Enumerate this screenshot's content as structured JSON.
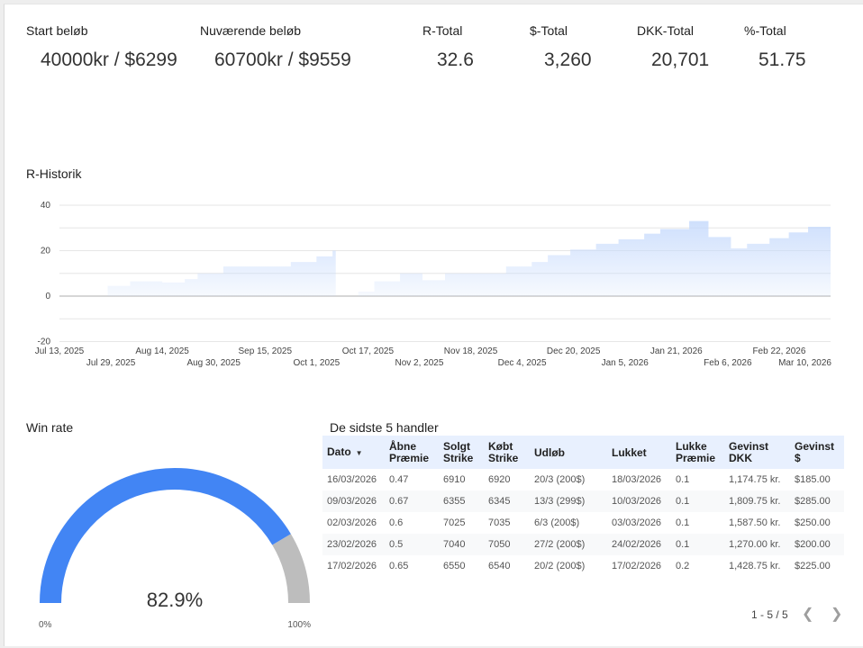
{
  "kpis": [
    {
      "label": "Start beløb",
      "value": "40000kr / $6299"
    },
    {
      "label": "Nuværende beløb",
      "value": "60700kr / $9559"
    },
    {
      "label": "R-Total",
      "value": "32.6"
    },
    {
      "label": "$-Total",
      "value": "3,260"
    },
    {
      "label": "DKK-Total",
      "value": "20,701"
    },
    {
      "label": "%-Total",
      "value": "51.75"
    }
  ],
  "colors": {
    "accent": "#4285f4",
    "gauge_rest": "#bdbdbd",
    "area_fill": "#c6dafc",
    "header_bg": "#e8f0fe"
  },
  "chart_data": {
    "type": "area",
    "title": "R-Historik",
    "xlabel": "",
    "ylabel": "",
    "ylim": [
      -20,
      40
    ],
    "yticks": [
      "40",
      "20",
      "0",
      "-20"
    ],
    "ytick_values": [
      40,
      20,
      0,
      -20
    ],
    "grid": true,
    "x_start": "2025-07-13",
    "x_end": "2026-03-10",
    "xticks_top": [
      "Jul 13, 2025",
      "Aug 14, 2025",
      "Sep 15, 2025",
      "Oct 17, 2025",
      "Nov 18, 2025",
      "Dec 20, 2025",
      "Jan 21, 2026",
      "Feb 22, 2026"
    ],
    "xticks_bottom": [
      "Jul 29, 2025",
      "Aug 30, 2025",
      "Oct 1, 2025",
      "Nov 2, 2025",
      "Dec 4, 2025",
      "Jan 5, 2026",
      "Feb 6, 2026",
      "Mar 10, 2026"
    ],
    "step_series": {
      "name": "R",
      "x": [
        "2025-07-28",
        "2025-08-04",
        "2025-08-14",
        "2025-08-21",
        "2025-08-25",
        "2025-09-02",
        "2025-09-23",
        "2025-10-01",
        "2025-10-06",
        "2025-10-07",
        "2025-10-14",
        "2025-10-19",
        "2025-10-27",
        "2025-11-03",
        "2025-11-10",
        "2025-11-29",
        "2025-12-07",
        "2025-12-12",
        "2025-12-19",
        "2025-12-27",
        "2026-01-03",
        "2026-01-11",
        "2026-01-16",
        "2026-01-25",
        "2026-01-31",
        "2026-02-07",
        "2026-02-12",
        "2026-02-19",
        "2026-02-25",
        "2026-03-03",
        "2026-03-10"
      ],
      "values": [
        4.5,
        6.5,
        6,
        7.5,
        10,
        13,
        15,
        17.5,
        20,
        0,
        2,
        6.5,
        10,
        7,
        10,
        13,
        15,
        18,
        20.5,
        23,
        25,
        27.5,
        29.5,
        33,
        26,
        21,
        23,
        25.5,
        28,
        30.5,
        31.5
      ]
    }
  },
  "win_rate": {
    "title": "Win rate",
    "value": 82.9,
    "value_label": "82.9%",
    "min_label": "0%",
    "max_label": "100%"
  },
  "trades": {
    "title": "De sidste 5 handler",
    "columns": [
      "Dato",
      "Åbne Præmie",
      "Solgt Strike",
      "Købt Strike",
      "Udløb",
      "Lukket",
      "Lukke Præmie",
      "Gevinst DKK",
      "Gevinst $"
    ],
    "sort_icon": "sort-desc-icon",
    "rows": [
      [
        "16/03/2026",
        "0.47",
        "6910",
        "6920",
        "20/3 (200$)",
        "18/03/2026",
        "0.1",
        "1,174.75 kr.",
        "$185.00"
      ],
      [
        "09/03/2026",
        "0.67",
        "6355",
        "6345",
        "13/3 (299$)",
        "10/03/2026",
        "0.1",
        "1,809.75 kr.",
        "$285.00"
      ],
      [
        "02/03/2026",
        "0.6",
        "7025",
        "7035",
        "6/3 (200$)",
        "03/03/2026",
        "0.1",
        "1,587.50 kr.",
        "$250.00"
      ],
      [
        "23/02/2026",
        "0.5",
        "7040",
        "7050",
        "27/2 (200$)",
        "24/02/2026",
        "0.1",
        "1,270.00 kr.",
        "$200.00"
      ],
      [
        "17/02/2026",
        "0.65",
        "6550",
        "6540",
        "20/2 (200$)",
        "17/02/2026",
        "0.2",
        "1,428.75 kr.",
        "$225.00"
      ]
    ],
    "pagination": "1 - 5 / 5",
    "prev_icon": "chevron-left-icon",
    "next_icon": "chevron-right-icon"
  }
}
